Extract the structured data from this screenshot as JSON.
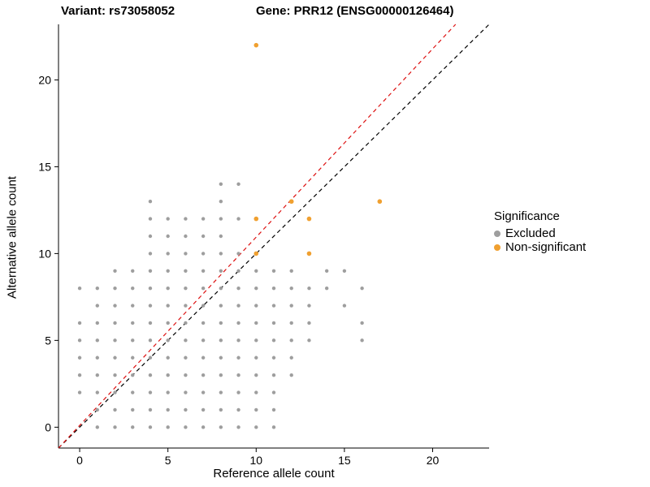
{
  "header": {
    "variant_title": "Variant: rs73058052",
    "gene_title": "Gene: PRR12 (ENSG00000126464)"
  },
  "chart_data": {
    "type": "scatter",
    "title": "Variant: rs73058052  Gene: PRR12 (ENSG00000126464)",
    "xlabel": "Reference allele count",
    "ylabel": "Alternative allele count",
    "xlim": [
      -1.2,
      23.2
    ],
    "ylim": [
      -1.2,
      23.2
    ],
    "xticks": [
      0,
      5,
      10,
      15,
      20
    ],
    "yticks": [
      0,
      5,
      10,
      15,
      20
    ],
    "grid": false,
    "legend": {
      "title": "Significance",
      "position": "right",
      "entries": [
        {
          "label": "Excluded",
          "color": "#9e9e9e"
        },
        {
          "label": "Non-significant",
          "color": "#f0a030"
        }
      ]
    },
    "lines": [
      {
        "name": "identity-line",
        "color": "#000000",
        "style": "dashed",
        "points": [
          [
            -1.2,
            -1.2
          ],
          [
            23.2,
            23.2
          ]
        ]
      },
      {
        "name": "fitted-line",
        "color": "#dd1111",
        "style": "dashed",
        "points": [
          [
            -1.2,
            -1.2
          ],
          [
            21.3,
            23.2
          ]
        ]
      }
    ],
    "series": [
      {
        "name": "Excluded",
        "color": "#9e9e9e",
        "radius": 2.2,
        "points": [
          [
            1,
            0
          ],
          [
            2,
            0
          ],
          [
            3,
            0
          ],
          [
            4,
            0
          ],
          [
            5,
            0
          ],
          [
            6,
            0
          ],
          [
            7,
            0
          ],
          [
            8,
            0
          ],
          [
            9,
            0
          ],
          [
            10,
            0
          ],
          [
            11,
            0
          ],
          [
            1,
            1
          ],
          [
            2,
            1
          ],
          [
            3,
            1
          ],
          [
            4,
            1
          ],
          [
            5,
            1
          ],
          [
            6,
            1
          ],
          [
            7,
            1
          ],
          [
            8,
            1
          ],
          [
            9,
            1
          ],
          [
            10,
            1
          ],
          [
            11,
            1
          ],
          [
            0,
            2
          ],
          [
            1,
            2
          ],
          [
            2,
            2
          ],
          [
            3,
            2
          ],
          [
            4,
            2
          ],
          [
            5,
            2
          ],
          [
            6,
            2
          ],
          [
            7,
            2
          ],
          [
            8,
            2
          ],
          [
            9,
            2
          ],
          [
            10,
            2
          ],
          [
            11,
            2
          ],
          [
            0,
            3
          ],
          [
            1,
            3
          ],
          [
            2,
            3
          ],
          [
            3,
            3
          ],
          [
            4,
            3
          ],
          [
            5,
            3
          ],
          [
            6,
            3
          ],
          [
            7,
            3
          ],
          [
            8,
            3
          ],
          [
            9,
            3
          ],
          [
            10,
            3
          ],
          [
            11,
            3
          ],
          [
            12,
            3
          ],
          [
            0,
            4
          ],
          [
            1,
            4
          ],
          [
            2,
            4
          ],
          [
            3,
            4
          ],
          [
            4,
            4
          ],
          [
            5,
            4
          ],
          [
            6,
            4
          ],
          [
            7,
            4
          ],
          [
            8,
            4
          ],
          [
            9,
            4
          ],
          [
            10,
            4
          ],
          [
            11,
            4
          ],
          [
            12,
            4
          ],
          [
            0,
            5
          ],
          [
            1,
            5
          ],
          [
            2,
            5
          ],
          [
            3,
            5
          ],
          [
            4,
            5
          ],
          [
            5,
            5
          ],
          [
            6,
            5
          ],
          [
            7,
            5
          ],
          [
            8,
            5
          ],
          [
            9,
            5
          ],
          [
            10,
            5
          ],
          [
            11,
            5
          ],
          [
            12,
            5
          ],
          [
            13,
            5
          ],
          [
            16,
            5
          ],
          [
            0,
            6
          ],
          [
            1,
            6
          ],
          [
            2,
            6
          ],
          [
            3,
            6
          ],
          [
            4,
            6
          ],
          [
            5,
            6
          ],
          [
            6,
            6
          ],
          [
            7,
            6
          ],
          [
            8,
            6
          ],
          [
            9,
            6
          ],
          [
            10,
            6
          ],
          [
            11,
            6
          ],
          [
            12,
            6
          ],
          [
            13,
            6
          ],
          [
            16,
            6
          ],
          [
            1,
            7
          ],
          [
            2,
            7
          ],
          [
            3,
            7
          ],
          [
            4,
            7
          ],
          [
            5,
            7
          ],
          [
            6,
            7
          ],
          [
            7,
            7
          ],
          [
            8,
            7
          ],
          [
            9,
            7
          ],
          [
            10,
            7
          ],
          [
            11,
            7
          ],
          [
            12,
            7
          ],
          [
            13,
            7
          ],
          [
            15,
            7
          ],
          [
            0,
            8
          ],
          [
            1,
            8
          ],
          [
            2,
            8
          ],
          [
            3,
            8
          ],
          [
            4,
            8
          ],
          [
            5,
            8
          ],
          [
            6,
            8
          ],
          [
            7,
            8
          ],
          [
            8,
            8
          ],
          [
            9,
            8
          ],
          [
            10,
            8
          ],
          [
            11,
            8
          ],
          [
            12,
            8
          ],
          [
            13,
            8
          ],
          [
            14,
            8
          ],
          [
            16,
            8
          ],
          [
            2,
            9
          ],
          [
            3,
            9
          ],
          [
            4,
            9
          ],
          [
            5,
            9
          ],
          [
            6,
            9
          ],
          [
            7,
            9
          ],
          [
            8,
            9
          ],
          [
            9,
            9
          ],
          [
            10,
            9
          ],
          [
            11,
            9
          ],
          [
            12,
            9
          ],
          [
            14,
            9
          ],
          [
            15,
            9
          ],
          [
            4,
            10
          ],
          [
            5,
            10
          ],
          [
            6,
            10
          ],
          [
            7,
            10
          ],
          [
            8,
            10
          ],
          [
            9,
            10
          ],
          [
            4,
            11
          ],
          [
            5,
            11
          ],
          [
            6,
            11
          ],
          [
            7,
            11
          ],
          [
            8,
            11
          ],
          [
            4,
            12
          ],
          [
            5,
            12
          ],
          [
            6,
            12
          ],
          [
            7,
            12
          ],
          [
            8,
            12
          ],
          [
            9,
            12
          ],
          [
            4,
            13
          ],
          [
            8,
            13
          ],
          [
            8,
            14
          ],
          [
            9,
            14
          ]
        ]
      },
      {
        "name": "Non-significant",
        "color": "#f0a030",
        "radius": 2.8,
        "points": [
          [
            10,
            22
          ],
          [
            10,
            12
          ],
          [
            10,
            10
          ],
          [
            12,
            13
          ],
          [
            13,
            12
          ],
          [
            13,
            10
          ],
          [
            17,
            13
          ]
        ]
      }
    ]
  }
}
